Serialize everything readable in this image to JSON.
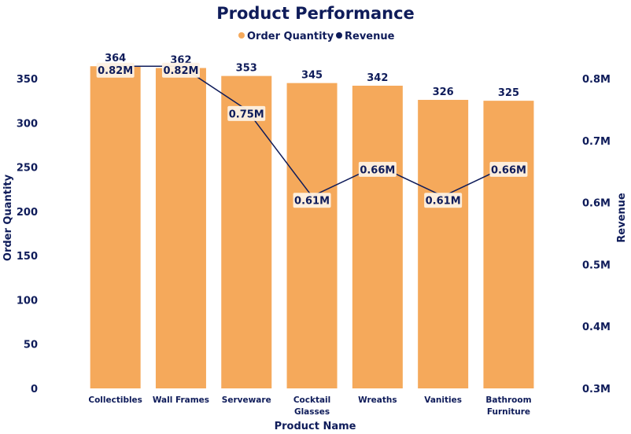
{
  "chart_data": {
    "type": "bar",
    "title": "Product Performance",
    "xlabel": "Product Name",
    "ylabel": "Order Quantity",
    "y2label": "Revenue",
    "categories": [
      "Collectibles",
      "Wall Frames",
      "Serveware",
      "Cocktail Glasses",
      "Wreaths",
      "Vanities",
      "Bathroom Furniture"
    ],
    "category_lines": [
      [
        "Collectibles"
      ],
      [
        "Wall Frames"
      ],
      [
        "Serveware"
      ],
      [
        "Cocktail",
        "Glasses"
      ],
      [
        "Wreaths"
      ],
      [
        "Vanities"
      ],
      [
        "Bathroom",
        "Furniture"
      ]
    ],
    "series": [
      {
        "name": "Order Quantity",
        "kind": "bar",
        "axis": "left",
        "color": "#f5a95b",
        "values": [
          364,
          362,
          353,
          345,
          342,
          326,
          325
        ],
        "labels": [
          "364",
          "362",
          "353",
          "345",
          "342",
          "326",
          "325"
        ]
      },
      {
        "name": "Revenue",
        "kind": "line",
        "axis": "right",
        "color": "#0f1c5a",
        "values": [
          0.82,
          0.82,
          0.75,
          0.61,
          0.66,
          0.61,
          0.66
        ],
        "labels": [
          "0.82M",
          "0.82M",
          "0.75M",
          "0.61M",
          "0.66M",
          "0.61M",
          "0.66M"
        ]
      }
    ],
    "ylim": [
      0,
      350
    ],
    "yticks": [
      "0",
      "50",
      "100",
      "150",
      "200",
      "250",
      "300",
      "350"
    ],
    "y2lim": [
      0.3,
      0.8
    ],
    "y2ticks": [
      "0.3M",
      "0.4M",
      "0.5M",
      "0.6M",
      "0.7M",
      "0.8M"
    ],
    "legend_position": "top",
    "grid": false
  }
}
